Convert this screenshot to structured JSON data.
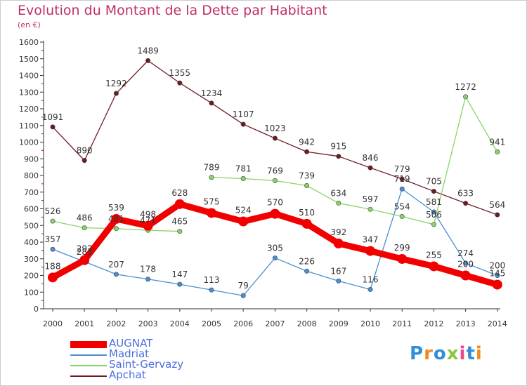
{
  "chart_data": {
    "type": "line",
    "title": "Evolution du Montant de la Dette par Habitant",
    "subtitle": "(en €)",
    "x": [
      "2000",
      "2001",
      "2002",
      "2003",
      "2004",
      "2005",
      "2006",
      "2007",
      "2008",
      "2009",
      "2010",
      "2011",
      "2012",
      "2013",
      "2014"
    ],
    "ylim": [
      0,
      1600
    ],
    "yticks": [
      0,
      100,
      200,
      300,
      400,
      500,
      600,
      700,
      800,
      900,
      1000,
      1100,
      1200,
      1300,
      1400,
      1500,
      1600
    ],
    "grid": false,
    "legend_placement": "bottom-left",
    "series": [
      {
        "name": "Apchat",
        "color": "#6e1a22",
        "values": [
          1091,
          890,
          1292,
          1489,
          1355,
          1234,
          1107,
          1023,
          942,
          915,
          846,
          779,
          705,
          633,
          564
        ]
      },
      {
        "name": "Saint-Gervazy",
        "color": "#88d468",
        "values": [
          526,
          486,
          481,
          471,
          465,
          789,
          781,
          769,
          739,
          634,
          597,
          554,
          506,
          1272,
          941
        ]
      },
      {
        "name": "Madriat",
        "color": "#4a8ed4",
        "values": [
          357,
          283,
          207,
          178,
          147,
          113,
          79,
          305,
          226,
          167,
          116,
          719,
          581,
          274,
          200
        ]
      },
      {
        "name": "AUGNAT",
        "color": "#f20000",
        "values": [
          188,
          292,
          539,
          498,
          628,
          575,
          524,
          570,
          510,
          392,
          347,
          299,
          255,
          200,
          145
        ]
      }
    ],
    "segments_drawn": {
      "Saint-Gervazy": [
        [
          0,
          4
        ],
        [
          5,
          12
        ],
        [
          12,
          14
        ]
      ],
      "Madriat": [
        [
          0,
          10
        ],
        [
          10,
          14
        ]
      ],
      "Apchat": [
        [
          0,
          14
        ]
      ],
      "AUGNAT": [
        [
          0,
          14
        ]
      ]
    }
  },
  "legend": [
    {
      "name": "AUGNAT",
      "color": "#f20000"
    },
    {
      "name": "Madriat",
      "color": "#4a8ed4"
    },
    {
      "name": "Saint-Gervazy",
      "color": "#88d468"
    },
    {
      "name": "Apchat",
      "color": "#6e1a22"
    }
  ],
  "logo": {
    "text": "Proxiti",
    "letter_colors": [
      "#2f8fd8",
      "#f08a1c",
      "#2f8fd8",
      "#8cc63f",
      "#e84a8a",
      "#2f8fd8",
      "#f08a1c"
    ]
  }
}
